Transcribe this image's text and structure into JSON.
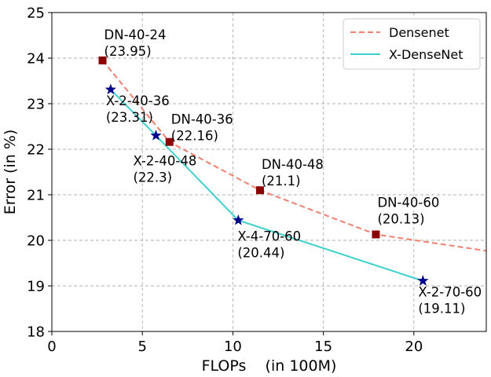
{
  "chart_data": {
    "type": "line",
    "xlabel": "FLOPs    (in 100M)",
    "ylabel": "Error (in %)",
    "xlim": [
      0,
      24
    ],
    "ylim": [
      18,
      25
    ],
    "xticks": [
      0,
      5,
      10,
      15,
      20
    ],
    "yticks": [
      18,
      19,
      20,
      21,
      22,
      23,
      24,
      25
    ],
    "grid": true,
    "legend_position": "top-right",
    "series": [
      {
        "name": "Densenet",
        "color": "#f08070",
        "line_style": "dashed",
        "marker": "square",
        "marker_color": "#8b0000",
        "line_points": [
          [
            2.8,
            23.95
          ],
          [
            6.5,
            22.16
          ],
          [
            11.5,
            21.1
          ],
          [
            17.9,
            20.13
          ],
          [
            24,
            19.77
          ]
        ],
        "points": [
          {
            "x": 2.8,
            "y": 23.95,
            "label": "DN-40-24",
            "value_label": "(23.95)"
          },
          {
            "x": 6.5,
            "y": 22.16,
            "label": "DN-40-36",
            "value_label": "(22.16)"
          },
          {
            "x": 11.5,
            "y": 21.1,
            "label": "DN-40-48",
            "value_label": "(21.1)"
          },
          {
            "x": 17.9,
            "y": 20.13,
            "label": "DN-40-60",
            "value_label": "(20.13)"
          }
        ]
      },
      {
        "name": "X-DenseNet",
        "color": "#40d0d0",
        "line_style": "solid",
        "marker": "star",
        "marker_color": "#00008b",
        "line_points": [
          [
            3.25,
            23.31
          ],
          [
            5.75,
            22.3
          ],
          [
            10.3,
            20.44
          ],
          [
            20.5,
            19.11
          ]
        ],
        "points": [
          {
            "x": 3.25,
            "y": 23.31,
            "label": "X-2-40-36",
            "value_label": "(23.31)"
          },
          {
            "x": 5.75,
            "y": 22.3,
            "label": "X-2-40-48",
            "value_label": "(22.3)"
          },
          {
            "x": 10.3,
            "y": 20.44,
            "label": "X-4-70-60",
            "value_label": "(20.44)"
          },
          {
            "x": 20.5,
            "y": 19.11,
            "label": "X-2-70-60",
            "value_label": "(19.11)"
          }
        ]
      }
    ]
  }
}
